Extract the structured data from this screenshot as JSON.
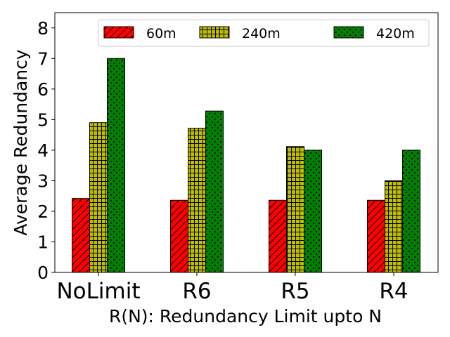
{
  "chart_data": {
    "type": "bar",
    "title": "",
    "xlabel": "R(N): Redundancy Limit upto N",
    "ylabel": "Average Redundancy",
    "categories": [
      "NoLimit",
      "R6",
      "R5",
      "R4"
    ],
    "ylim": [
      0,
      8.5
    ],
    "yticks": [
      0,
      1,
      2,
      3,
      4,
      5,
      6,
      7,
      8
    ],
    "grid": false,
    "legend_position": "top-right",
    "series": [
      {
        "name": "60m",
        "values": [
          2.42,
          2.36,
          2.36,
          2.36
        ],
        "color": "#ff0000",
        "hatch": "diagonal"
      },
      {
        "name": "240m",
        "values": [
          4.9,
          4.72,
          4.12,
          3.0
        ],
        "color": "#bfbf00",
        "hatch": "grid"
      },
      {
        "name": "420m",
        "values": [
          7.0,
          5.28,
          4.0,
          4.0
        ],
        "color": "#008000",
        "hatch": "dots"
      }
    ]
  }
}
